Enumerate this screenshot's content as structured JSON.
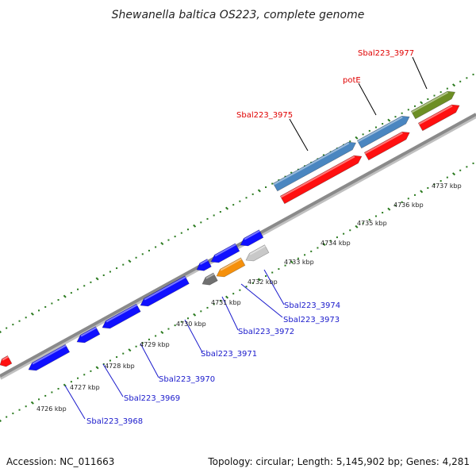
{
  "title": "Shewanella baltica OS223, complete genome",
  "footer": {
    "accession": "Accession: NC_011663",
    "summary": "Topology: circular; Length: 5,145,902 bp; Genes: 4,281"
  },
  "colors": {
    "backbone": "#8a8a8a",
    "tick": "#2a7a1e",
    "label_forward": "#e00000",
    "label_reverse": "#1a1acc",
    "steelblue": "#4a86c0",
    "red": "#ff1010",
    "olive": "#6d8e24",
    "blue": "#1010ff",
    "orange": "#f5900c",
    "lightgray": "#c8c8c8",
    "darkgray": "#707070"
  },
  "tick_labels": [
    "4726 kbp",
    "4727 kbp",
    "4728 kbp",
    "4729 kbp",
    "4730 kbp",
    "4731 kbp",
    "4732 kbp",
    "4733 kbp",
    "4734 kbp",
    "4735 kbp",
    "4736 kbp",
    "4737 kbp"
  ],
  "gene_labels_forward": [
    "Sbal223_3975",
    "potE",
    "Sbal223_3977"
  ],
  "gene_labels_reverse": [
    "Sbal223_3968",
    "Sbal223_3969",
    "Sbal223_3970",
    "Sbal223_3971",
    "Sbal223_3972",
    "Sbal223_3973",
    "Sbal223_3974"
  ]
}
